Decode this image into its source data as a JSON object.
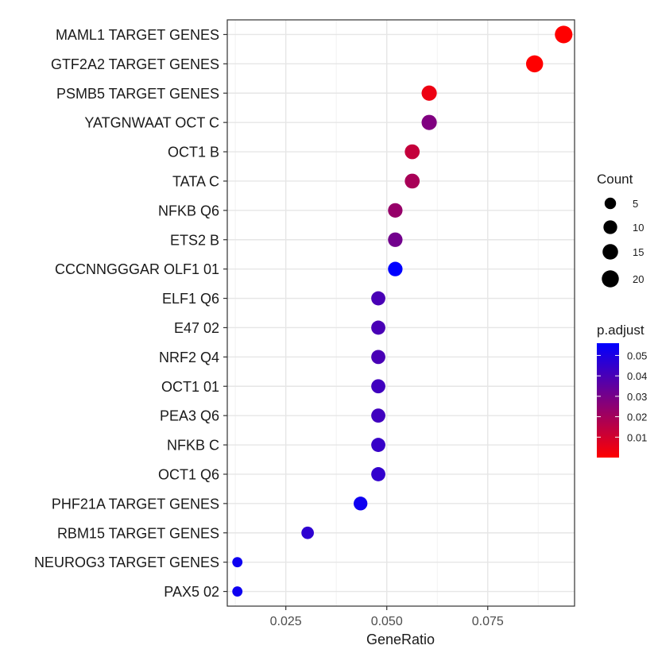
{
  "chart_data": {
    "type": "scatter",
    "xlabel": "GeneRatio",
    "ylabel": "",
    "xlim": [
      0.0105,
      0.0965
    ],
    "x_ticks": [
      0.025,
      0.05,
      0.075
    ],
    "x_tick_labels": [
      "0.025",
      "0.050",
      "0.075"
    ],
    "grid": true,
    "categories": [
      "MAML1 TARGET GENES",
      "GTF2A2 TARGET GENES",
      "PSMB5 TARGET GENES",
      "YATGNWAAT OCT C",
      "OCT1 B",
      "TATA C",
      "NFKB Q6",
      "ETS2 B",
      "CCCNNGGGAR OLF1 01",
      "ELF1 Q6",
      "E47 02",
      "NRF2 Q4",
      "OCT1 01",
      "PEA3 Q6",
      "NFKB C",
      "OCT1 Q6",
      "PHF21A TARGET GENES",
      "RBM15 TARGET GENES",
      "NEUROG3 TARGET GENES",
      "PAX5 02"
    ],
    "points": [
      {
        "term": "MAML1 TARGET GENES",
        "gene_ratio": 0.0938,
        "count": 22,
        "p_adjust": 0.0
      },
      {
        "term": "GTF2A2 TARGET GENES",
        "gene_ratio": 0.0866,
        "count": 20,
        "p_adjust": 0.0
      },
      {
        "term": "PSMB5 TARGET GENES",
        "gene_ratio": 0.0605,
        "count": 14,
        "p_adjust": 0.004
      },
      {
        "term": "YATGNWAAT OCT C",
        "gene_ratio": 0.0605,
        "count": 14,
        "p_adjust": 0.028
      },
      {
        "term": "OCT1 B",
        "gene_ratio": 0.0563,
        "count": 13,
        "p_adjust": 0.013
      },
      {
        "term": "TATA C",
        "gene_ratio": 0.0563,
        "count": 13,
        "p_adjust": 0.019
      },
      {
        "term": "NFKB Q6",
        "gene_ratio": 0.0521,
        "count": 12,
        "p_adjust": 0.023
      },
      {
        "term": "ETS2 B",
        "gene_ratio": 0.0521,
        "count": 12,
        "p_adjust": 0.031
      },
      {
        "term": "CCCNNGGGAR OLF1 01",
        "gene_ratio": 0.0521,
        "count": 12,
        "p_adjust": 0.056
      },
      {
        "term": "ELF1 Q6",
        "gene_ratio": 0.0479,
        "count": 11,
        "p_adjust": 0.04
      },
      {
        "term": "E47 02",
        "gene_ratio": 0.0479,
        "count": 11,
        "p_adjust": 0.04
      },
      {
        "term": "NRF2 Q4",
        "gene_ratio": 0.0479,
        "count": 11,
        "p_adjust": 0.04
      },
      {
        "term": "OCT1 01",
        "gene_ratio": 0.0479,
        "count": 11,
        "p_adjust": 0.042
      },
      {
        "term": "PEA3 Q6",
        "gene_ratio": 0.0479,
        "count": 11,
        "p_adjust": 0.042
      },
      {
        "term": "NFKB C",
        "gene_ratio": 0.0479,
        "count": 11,
        "p_adjust": 0.044
      },
      {
        "term": "OCT1 Q6",
        "gene_ratio": 0.0479,
        "count": 11,
        "p_adjust": 0.045
      },
      {
        "term": "PHF21A TARGET GENES",
        "gene_ratio": 0.0435,
        "count": 10,
        "p_adjust": 0.053
      },
      {
        "term": "RBM15 TARGET GENES",
        "gene_ratio": 0.0304,
        "count": 7,
        "p_adjust": 0.046
      },
      {
        "term": "NEUROG3 TARGET GENES",
        "gene_ratio": 0.013,
        "count": 3,
        "p_adjust": 0.053
      },
      {
        "term": "PAX5 02",
        "gene_ratio": 0.013,
        "count": 3,
        "p_adjust": 0.053
      }
    ],
    "size_legend": {
      "title": "Count",
      "values": [
        5,
        10,
        15,
        20
      ],
      "labels": [
        "5",
        "10",
        "15",
        "20"
      ]
    },
    "color_legend": {
      "title": "p.adjust",
      "range": [
        0.0,
        0.056
      ],
      "ticks": [
        0.01,
        0.02,
        0.03,
        0.04,
        0.05
      ],
      "tick_labels": [
        "0.01",
        "0.02",
        "0.03",
        "0.04",
        "0.05"
      ],
      "low_color": "#ff0000",
      "high_color": "#0000ff"
    }
  }
}
